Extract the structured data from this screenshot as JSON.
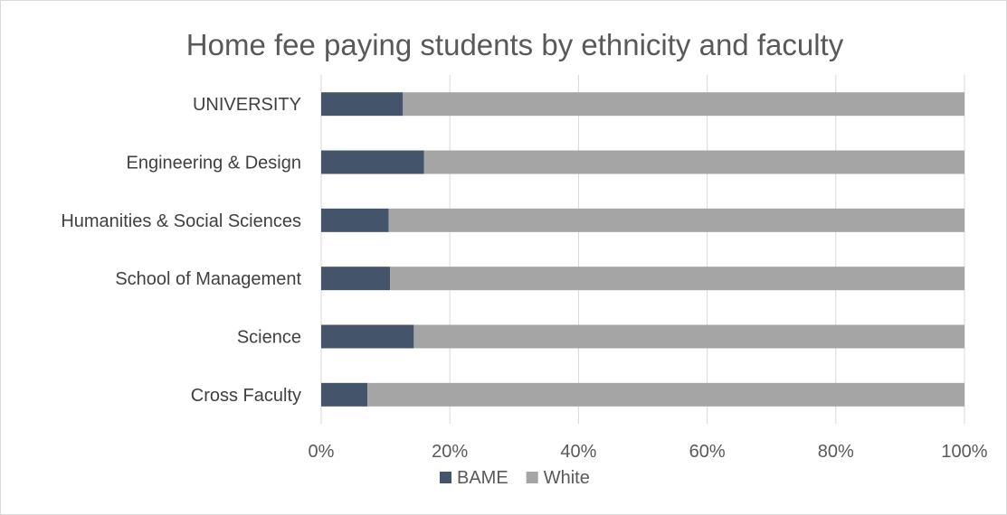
{
  "chart_data": {
    "type": "bar",
    "orientation": "horizontal",
    "stacked": "percent",
    "title": "Home fee paying students by ethnicity and faculty",
    "xlabel": "",
    "ylabel": "",
    "categories": [
      "UNIVERSITY",
      "Engineering & Design",
      "Humanities & Social Sciences",
      "School of Management",
      "Science",
      "Cross Faculty"
    ],
    "series": [
      {
        "name": "BAME",
        "color": "#44546a",
        "values": [
          12.7,
          16.0,
          10.5,
          10.7,
          14.4,
          7.2
        ]
      },
      {
        "name": "White",
        "color": "#a5a5a5",
        "values": [
          87.3,
          84.0,
          89.5,
          89.3,
          85.6,
          92.8
        ]
      }
    ],
    "xlim": [
      0,
      100
    ],
    "xticks": [
      0,
      20,
      40,
      60,
      80,
      100
    ],
    "xtick_labels": [
      "0%",
      "20%",
      "40%",
      "60%",
      "80%",
      "100%"
    ],
    "grid": "vertical",
    "legend": "bottom"
  }
}
